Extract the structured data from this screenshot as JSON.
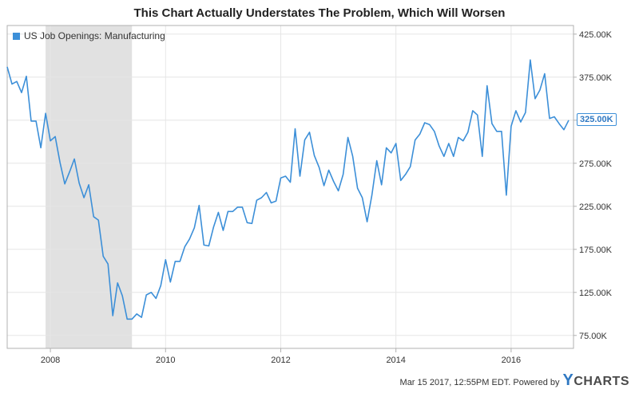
{
  "chart_data": {
    "type": "line",
    "title": "This Chart Actually Understates The Problem, Which Will Worsen",
    "series": [
      {
        "name": "US Job Openings: Manufacturing",
        "color": "#3c8fd8",
        "points": [
          [
            "2007-04",
            387
          ],
          [
            "2007-05",
            367
          ],
          [
            "2007-06",
            370
          ],
          [
            "2007-07",
            357
          ],
          [
            "2007-08",
            376
          ],
          [
            "2007-09",
            324
          ],
          [
            "2007-10",
            324
          ],
          [
            "2007-11",
            293
          ],
          [
            "2007-12",
            333
          ],
          [
            "2008-01",
            301
          ],
          [
            "2008-02",
            306
          ],
          [
            "2008-03",
            276
          ],
          [
            "2008-04",
            251
          ],
          [
            "2008-05",
            265
          ],
          [
            "2008-06",
            280
          ],
          [
            "2008-07",
            252
          ],
          [
            "2008-08",
            235
          ],
          [
            "2008-09",
            250
          ],
          [
            "2008-10",
            213
          ],
          [
            "2008-11",
            209
          ],
          [
            "2008-12",
            167
          ],
          [
            "2009-01",
            158
          ],
          [
            "2009-02",
            98
          ],
          [
            "2009-03",
            136
          ],
          [
            "2009-04",
            121
          ],
          [
            "2009-05",
            94
          ],
          [
            "2009-06",
            94
          ],
          [
            "2009-07",
            100
          ],
          [
            "2009-08",
            96
          ],
          [
            "2009-09",
            122
          ],
          [
            "2009-10",
            125
          ],
          [
            "2009-11",
            118
          ],
          [
            "2009-12",
            133
          ],
          [
            "2010-01",
            163
          ],
          [
            "2010-02",
            137
          ],
          [
            "2010-03",
            161
          ],
          [
            "2010-04",
            161
          ],
          [
            "2010-05",
            178
          ],
          [
            "2010-06",
            187
          ],
          [
            "2010-07",
            200
          ],
          [
            "2010-08",
            226
          ],
          [
            "2010-09",
            180
          ],
          [
            "2010-10",
            179
          ],
          [
            "2010-11",
            201
          ],
          [
            "2010-12",
            218
          ],
          [
            "2011-01",
            197
          ],
          [
            "2011-02",
            219
          ],
          [
            "2011-03",
            219
          ],
          [
            "2011-04",
            224
          ],
          [
            "2011-05",
            224
          ],
          [
            "2011-06",
            206
          ],
          [
            "2011-07",
            205
          ],
          [
            "2011-08",
            232
          ],
          [
            "2011-09",
            235
          ],
          [
            "2011-10",
            241
          ],
          [
            "2011-11",
            229
          ],
          [
            "2011-12",
            231
          ],
          [
            "2012-01",
            258
          ],
          [
            "2012-02",
            260
          ],
          [
            "2012-03",
            253
          ],
          [
            "2012-04",
            315
          ],
          [
            "2012-05",
            260
          ],
          [
            "2012-06",
            302
          ],
          [
            "2012-07",
            311
          ],
          [
            "2012-08",
            284
          ],
          [
            "2012-09",
            270
          ],
          [
            "2012-10",
            249
          ],
          [
            "2012-11",
            267
          ],
          [
            "2012-12",
            254
          ],
          [
            "2013-01",
            243
          ],
          [
            "2013-02",
            262
          ],
          [
            "2013-03",
            305
          ],
          [
            "2013-04",
            283
          ],
          [
            "2013-05",
            246
          ],
          [
            "2013-06",
            235
          ],
          [
            "2013-07",
            207
          ],
          [
            "2013-08",
            238
          ],
          [
            "2013-09",
            278
          ],
          [
            "2013-10",
            250
          ],
          [
            "2013-11",
            293
          ],
          [
            "2013-12",
            287
          ],
          [
            "2014-01",
            298
          ],
          [
            "2014-02",
            255
          ],
          [
            "2014-03",
            262
          ],
          [
            "2014-04",
            271
          ],
          [
            "2014-05",
            302
          ],
          [
            "2014-06",
            309
          ],
          [
            "2014-07",
            322
          ],
          [
            "2014-08",
            320
          ],
          [
            "2014-09",
            312
          ],
          [
            "2014-10",
            295
          ],
          [
            "2014-11",
            283
          ],
          [
            "2014-12",
            298
          ],
          [
            "2015-01",
            283
          ],
          [
            "2015-02",
            305
          ],
          [
            "2015-03",
            301
          ],
          [
            "2015-04",
            311
          ],
          [
            "2015-05",
            336
          ],
          [
            "2015-06",
            331
          ],
          [
            "2015-07",
            283
          ],
          [
            "2015-08",
            365
          ],
          [
            "2015-09",
            321
          ],
          [
            "2015-10",
            312
          ],
          [
            "2015-11",
            312
          ],
          [
            "2015-12",
            238
          ],
          [
            "2016-01",
            318
          ],
          [
            "2016-02",
            336
          ],
          [
            "2016-03",
            323
          ],
          [
            "2016-04",
            334
          ],
          [
            "2016-05",
            395
          ],
          [
            "2016-06",
            350
          ],
          [
            "2016-07",
            360
          ],
          [
            "2016-08",
            379
          ],
          [
            "2016-09",
            327
          ],
          [
            "2016-10",
            329
          ],
          [
            "2016-11",
            321
          ],
          [
            "2016-12",
            314
          ],
          [
            "2017-01",
            325
          ]
        ]
      }
    ],
    "y_unit": "thousands",
    "ylim": [
      60,
      435
    ],
    "y_ticks": [
      75,
      125,
      175,
      225,
      275,
      325,
      375,
      425
    ],
    "y_tick_labels": [
      "75.00K",
      "125.00K",
      "175.00K",
      "225.00K",
      "275.00K",
      "325.00K",
      "375.00K",
      "425.00K"
    ],
    "x_range": [
      "2007-04",
      "2017-02"
    ],
    "x_ticks": [
      "2008-01",
      "2010-01",
      "2012-01",
      "2014-01",
      "2016-01"
    ],
    "x_tick_labels": [
      "2008",
      "2010",
      "2012",
      "2014",
      "2016"
    ],
    "recession_band": [
      "2007-12",
      "2009-06"
    ],
    "last_value_label": "325.00K",
    "grid": true,
    "legend": "top-left"
  },
  "footer": {
    "timestamp": "Mar 15 2017, 12:55PM EDT.",
    "powered_by": "Powered by",
    "brand_y": "Y",
    "brand_rest": "CHARTS"
  },
  "colors": {
    "line": "#3c8fd8",
    "recession": "#e1e1e1",
    "grid": "#e6e6e6",
    "axis": "#b0b0b0"
  }
}
